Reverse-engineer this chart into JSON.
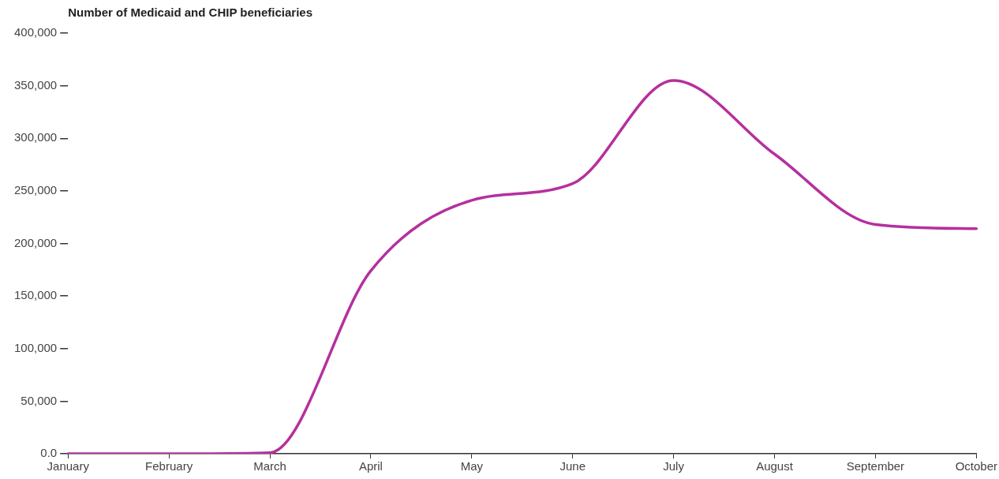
{
  "chart_data": {
    "type": "line",
    "title": "Number of Medicaid and CHIP beneficiaries",
    "categories": [
      "January",
      "February",
      "March",
      "April",
      "May",
      "June",
      "July",
      "August",
      "September",
      "October"
    ],
    "series": [
      {
        "color": "#b5309f",
        "values": [
          0,
          0,
          1000,
          174000,
          241000,
          257000,
          355000,
          285000,
          218000,
          214000
        ]
      }
    ],
    "ylim": [
      0,
      400000
    ],
    "yticks": [
      {
        "value": 0,
        "label": "0.0"
      },
      {
        "value": 50000,
        "label": "50,000"
      },
      {
        "value": 100000,
        "label": "100,000"
      },
      {
        "value": 150000,
        "label": "150,000"
      },
      {
        "value": 200000,
        "label": "200,000"
      },
      {
        "value": 250000,
        "label": "250,000"
      },
      {
        "value": 300000,
        "label": "300,000"
      },
      {
        "value": 350000,
        "label": "350,000"
      },
      {
        "value": 400000,
        "label": "400,000"
      }
    ],
    "grid": false,
    "legend": false,
    "marker": "none",
    "line_style": "solid"
  }
}
